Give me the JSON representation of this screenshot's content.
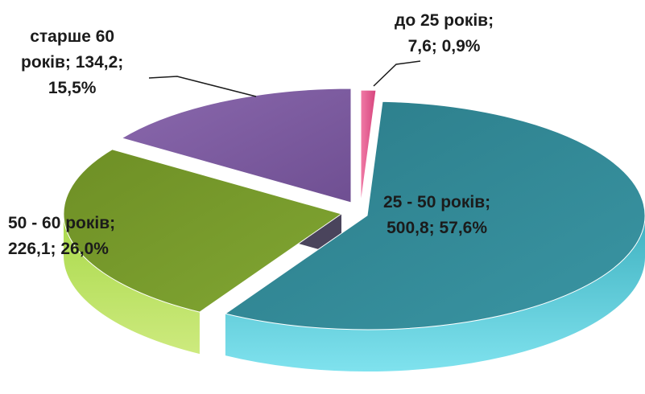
{
  "chart_data": {
    "type": "pie",
    "variant": "3d-exploded",
    "slices": [
      {
        "label": "до 25 років",
        "value": 7.6,
        "percent": 0.9,
        "color": "#e84f8a",
        "label_lines": [
          "до 25 років;",
          "7,6; 0,9%"
        ]
      },
      {
        "label": "25 - 50 років",
        "value": 500.8,
        "percent": 57.6,
        "color": "#2f8593",
        "label_lines": [
          "25 - 50 років;",
          "500,8; 57,6%"
        ]
      },
      {
        "label": "50 - 60 років",
        "value": 226.1,
        "percent": 26.0,
        "color": "#7a9a2a",
        "label_lines": [
          "50 - 60 років;",
          "226,1; 26,0%"
        ]
      },
      {
        "label": "старше 60 років",
        "value": 134.2,
        "percent": 15.5,
        "color": "#7e5aa0",
        "label_lines": [
          "старше 60",
          "років; 134,2;",
          "15,5%"
        ]
      }
    ]
  }
}
